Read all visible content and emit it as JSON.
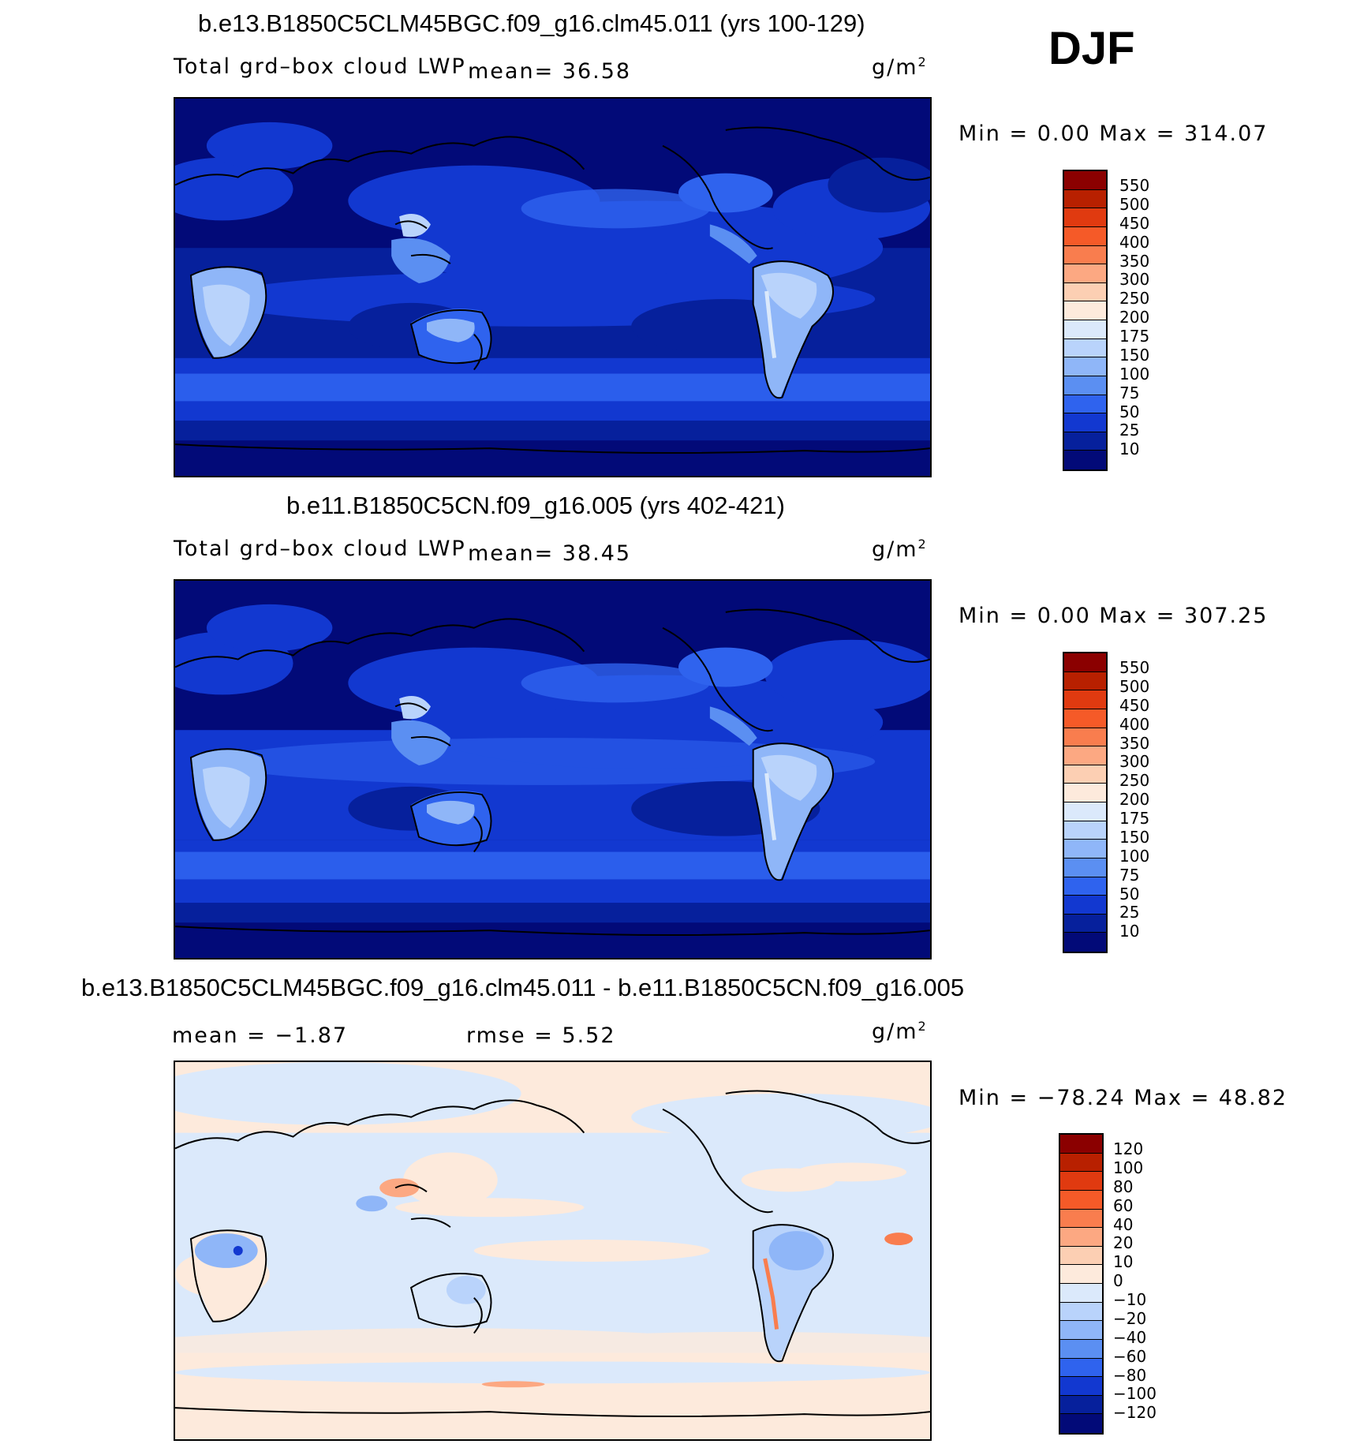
{
  "season": "DJF",
  "panels": [
    {
      "title": "b.e13.B1850C5CLM45BGC.f09_g16.clm45.011 (yrs 100-129)",
      "left_label": "Total grd–box cloud LWP",
      "stat_text": "mean=   36.58",
      "units_text": "g/m",
      "units_sup": "2",
      "minmax": "Min  =     0.00  Max  =  314.07"
    },
    {
      "title": "b.e11.B1850C5CN.f09_g16.005 (yrs 402-421)",
      "left_label": "Total grd–box cloud LWP",
      "stat_text": "mean=   38.45",
      "units_text": "g/m",
      "units_sup": "2",
      "minmax": "Min  =     0.00  Max  =  307.25"
    },
    {
      "title": "b.e13.B1850C5CLM45BGC.f09_g16.clm45.011 - b.e11.B1850C5CN.f09_g16.005",
      "left_label": "mean  =   −1.87",
      "stat_text": "rmse  =     5.52",
      "units_text": "g/m",
      "units_sup": "2",
      "minmax": "Min  = −78.24  Max  =   48.82"
    }
  ],
  "colorbars": {
    "abs": {
      "labels": [
        "550",
        "500",
        "450",
        "400",
        "350",
        "300",
        "250",
        "200",
        "175",
        "150",
        "100",
        "75",
        "50",
        "25",
        "10"
      ],
      "colors": [
        "#8b0000",
        "#b82000",
        "#e03a10",
        "#f55a28",
        "#f97d4e",
        "#fca882",
        "#fccfb3",
        "#fdeadc",
        "#dbe9fb",
        "#b9d3fb",
        "#8fb6f8",
        "#5b8ff2",
        "#2f63ee",
        "#1238d0",
        "#06209c",
        "#020a78"
      ]
    },
    "diff": {
      "labels": [
        "120",
        "100",
        "80",
        "60",
        "40",
        "20",
        "10",
        "0",
        "−10",
        "−20",
        "−40",
        "−60",
        "−80",
        "−100",
        "−120"
      ],
      "colors": [
        "#8b0000",
        "#b82000",
        "#e03a10",
        "#f55a28",
        "#f97d4e",
        "#fca882",
        "#fccfb3",
        "#fdeadc",
        "#dbe9fb",
        "#b9d3fb",
        "#8fb6f8",
        "#5b8ff2",
        "#2f63ee",
        "#1238d0",
        "#06209c",
        "#020a78"
      ]
    }
  }
}
